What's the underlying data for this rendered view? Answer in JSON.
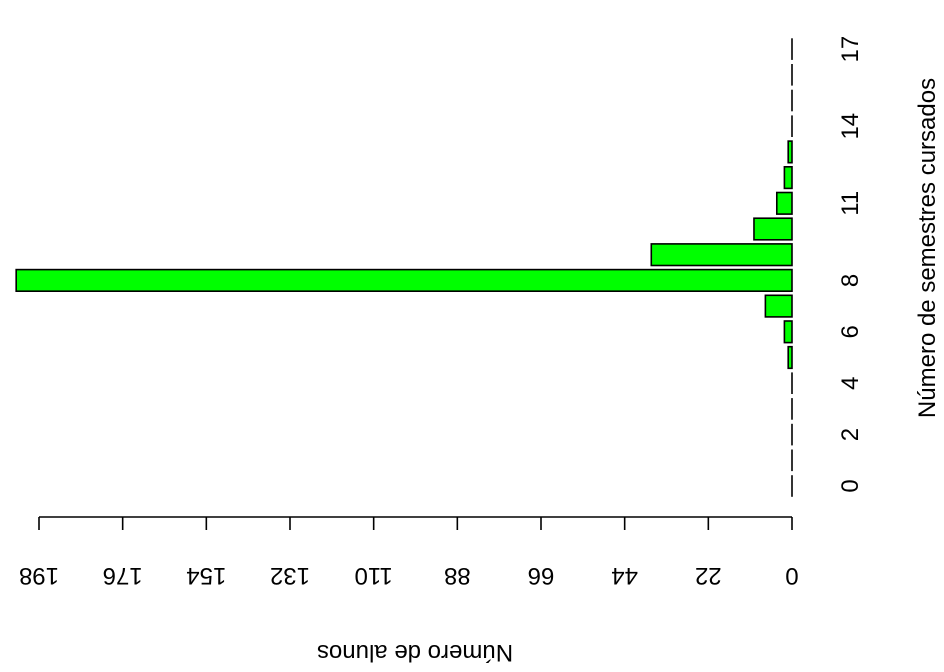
{
  "chart_data": {
    "type": "bar",
    "orientation": "horizontal",
    "x_axis_reversed": true,
    "xlabel": "Número de alunos",
    "ylabel": "Número de semestres cursados",
    "xlim": [
      0,
      198
    ],
    "x_ticks": [
      0,
      22,
      44,
      66,
      88,
      110,
      132,
      154,
      176,
      198
    ],
    "x_tick_labels": [
      "0",
      "22",
      "44",
      "66",
      "88",
      "110",
      "132",
      "154",
      "176",
      "198"
    ],
    "y_ticks": [
      0,
      2,
      4,
      6,
      8,
      11,
      14,
      17
    ],
    "y_tick_labels": [
      "0",
      "2",
      "4",
      "6",
      "8",
      "11",
      "14",
      "17"
    ],
    "categories": [
      0,
      1,
      2,
      3,
      4,
      5,
      6,
      7,
      8,
      9,
      10,
      11,
      12,
      13,
      14,
      15,
      16,
      17
    ],
    "values": [
      0,
      0,
      0,
      0,
      0,
      1,
      2,
      7,
      204,
      37,
      10,
      4,
      2,
      1,
      0,
      0,
      0,
      0
    ],
    "bar_color": "#00ff00",
    "bar_edge_color": "#000000",
    "grid": false,
    "legend": "none"
  }
}
